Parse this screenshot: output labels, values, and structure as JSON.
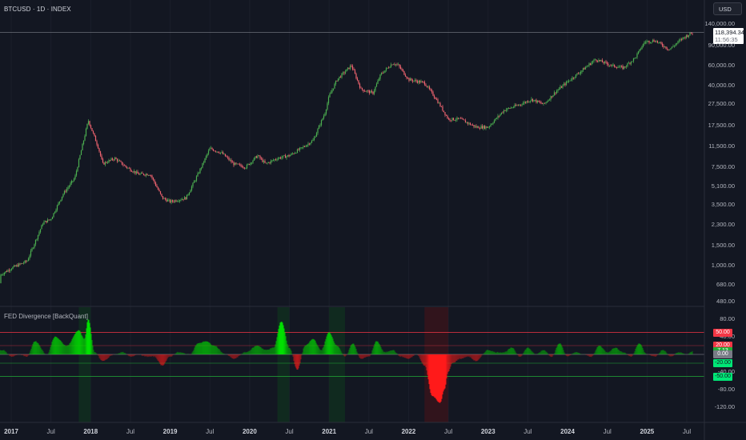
{
  "header": {
    "symbol_line": "BTCUSD · 1D · INDEX"
  },
  "currency_button": "USD",
  "last_price": {
    "value": "118,394.34",
    "countdown": "11:56:35"
  },
  "price_axis": [
    {
      "label": "140,000.00",
      "v": 140000
    },
    {
      "label": "90,000.00",
      "v": 90000
    },
    {
      "label": "60,000.00",
      "v": 60000
    },
    {
      "label": "40,000.00",
      "v": 40000
    },
    {
      "label": "27,500.00",
      "v": 27500
    },
    {
      "label": "17,500.00",
      "v": 17500
    },
    {
      "label": "11,500.00",
      "v": 11500
    },
    {
      "label": "7,500.00",
      "v": 7500
    },
    {
      "label": "5,100.00",
      "v": 5100
    },
    {
      "label": "3,500.00",
      "v": 3500
    },
    {
      "label": "2,300.00",
      "v": 2300
    },
    {
      "label": "1,500.00",
      "v": 1500
    },
    {
      "label": "1,000.00",
      "v": 1000
    },
    {
      "label": "680.00",
      "v": 680
    },
    {
      "label": "480.00",
      "v": 480
    }
  ],
  "indicator": {
    "title": "FED Divergence [BackQuant]",
    "axis": [
      {
        "label": "80.00",
        "v": 80
      },
      {
        "label": "40.00",
        "v": 40
      },
      {
        "label": "-40.00",
        "v": -40
      },
      {
        "label": "-80.00",
        "v": -80
      },
      {
        "label": "-120.00",
        "v": -120
      }
    ],
    "levels": {
      "upper_red": 50,
      "upper_red_inner": 20,
      "zero": 0,
      "lower_green_inner": -20,
      "lower_green": -50
    },
    "badges": [
      {
        "label": "50.00",
        "v": 50,
        "bg": "#f23645",
        "fg": "#ffffff"
      },
      {
        "label": "20.00",
        "v": 20,
        "bg": "#f23645",
        "fg": "#ffffff"
      },
      {
        "label": "7.13",
        "v": 7.13,
        "bg": "#22ab37",
        "fg": "#ffffff"
      },
      {
        "label": "0.00",
        "v": 0,
        "bg": "#787b86",
        "fg": "#ffffff"
      },
      {
        "label": "-20.00",
        "v": -20,
        "bg": "#00e676",
        "fg": "#131722"
      },
      {
        "label": "-50.00",
        "v": -50,
        "bg": "#00e676",
        "fg": "#131722"
      }
    ]
  },
  "time_axis": [
    {
      "label": "2017",
      "year": true,
      "t": 2017.0
    },
    {
      "label": "Jul",
      "year": false,
      "t": 2017.5
    },
    {
      "label": "2018",
      "year": true,
      "t": 2018.0
    },
    {
      "label": "Jul",
      "year": false,
      "t": 2018.5
    },
    {
      "label": "2019",
      "year": true,
      "t": 2019.0
    },
    {
      "label": "Jul",
      "year": false,
      "t": 2019.5
    },
    {
      "label": "2020",
      "year": true,
      "t": 2020.0
    },
    {
      "label": "Jul",
      "year": false,
      "t": 2020.5
    },
    {
      "label": "2021",
      "year": true,
      "t": 2021.0
    },
    {
      "label": "Jul",
      "year": false,
      "t": 2021.5
    },
    {
      "label": "2022",
      "year": true,
      "t": 2022.0
    },
    {
      "label": "Jul",
      "year": false,
      "t": 2022.5
    },
    {
      "label": "2023",
      "year": true,
      "t": 2023.0
    },
    {
      "label": "Jul",
      "year": false,
      "t": 2023.5
    },
    {
      "label": "2024",
      "year": true,
      "t": 2024.0
    },
    {
      "label": "Jul",
      "year": false,
      "t": 2024.5
    },
    {
      "label": "2025",
      "year": true,
      "t": 2025.0
    },
    {
      "label": "Jul",
      "year": false,
      "t": 2025.5
    }
  ],
  "colors": {
    "background": "#131722",
    "up": "#4caf50",
    "down": "#f06470",
    "osc_up": "#00e000",
    "osc_down": "#ff1a1a"
  },
  "chart_data": [
    {
      "type": "line",
      "scale": "log",
      "series": [
        {
          "x": [
            2016.7,
            2017.0,
            2017.2,
            2017.4,
            2017.5,
            2017.65,
            2017.8,
            2017.95,
            2017.97,
            2018.1,
            2018.15,
            2018.3,
            2018.45,
            2018.6,
            2018.75,
            2018.9,
            2019.0,
            2019.2,
            2019.35,
            2019.5,
            2019.65,
            2019.8,
            2019.95,
            2020.1,
            2020.2,
            2020.35,
            2020.5,
            2020.65,
            2020.8,
            2020.95,
            2021.0,
            2021.1,
            2021.28,
            2021.4,
            2021.55,
            2021.65,
            2021.8,
            2021.87,
            2022.0,
            2022.2,
            2022.35,
            2022.5,
            2022.65,
            2022.85,
            2023.0,
            2023.2,
            2023.4,
            2023.55,
            2023.7,
            2023.85,
            2024.0,
            2024.15,
            2024.35,
            2024.55,
            2024.7,
            2024.85,
            2024.97,
            2025.1,
            2025.28,
            2025.45,
            2025.58
          ],
          "y": [
            700,
            950,
            1100,
            2400,
            2600,
            4300,
            6000,
            17000,
            19500,
            11000,
            8000,
            9000,
            7500,
            6500,
            6500,
            4000,
            3700,
            4000,
            6500,
            11000,
            10000,
            8000,
            7500,
            9500,
            8000,
            9000,
            9500,
            11000,
            13000,
            23000,
            32000,
            45000,
            60000,
            37000,
            34000,
            50000,
            63000,
            60000,
            45000,
            42000,
            30000,
            20000,
            20000,
            17000,
            17000,
            24000,
            27000,
            30000,
            27000,
            35000,
            43000,
            52000,
            68000,
            60000,
            57000,
            70000,
            97000,
            100000,
            83000,
            105000,
            118394
          ]
        }
      ]
    },
    {
      "type": "area",
      "series": [
        {
          "x": [
            2016.9,
            2017.0,
            2017.1,
            2017.2,
            2017.3,
            2017.45,
            2017.55,
            2017.7,
            2017.85,
            2017.92,
            2017.97,
            2018.05,
            2018.15,
            2018.3,
            2018.4,
            2018.5,
            2018.6,
            2018.7,
            2018.8,
            2018.9,
            2019.0,
            2019.1,
            2019.25,
            2019.35,
            2019.45,
            2019.55,
            2019.7,
            2019.8,
            2019.95,
            2020.1,
            2020.2,
            2020.3,
            2020.4,
            2020.5,
            2020.6,
            2020.7,
            2020.8,
            2020.9,
            2021.0,
            2021.1,
            2021.2,
            2021.3,
            2021.4,
            2021.5,
            2021.6,
            2021.7,
            2021.8,
            2021.9,
            2022.0,
            2022.1,
            2022.2,
            2022.3,
            2022.4,
            2022.45,
            2022.5,
            2022.55,
            2022.65,
            2022.75,
            2022.85,
            2023.0,
            2023.1,
            2023.2,
            2023.3,
            2023.4,
            2023.5,
            2023.6,
            2023.7,
            2023.8,
            2023.9,
            2024.0,
            2024.1,
            2024.2,
            2024.3,
            2024.4,
            2024.5,
            2024.6,
            2024.7,
            2024.8,
            2024.9,
            2025.0,
            2025.1,
            2025.2,
            2025.3,
            2025.4,
            2025.5,
            2025.58
          ],
          "y": [
            10,
            -5,
            0,
            -5,
            30,
            0,
            40,
            20,
            55,
            35,
            80,
            5,
            -15,
            0,
            5,
            -5,
            0,
            -5,
            -5,
            -25,
            -5,
            5,
            0,
            25,
            30,
            20,
            0,
            -10,
            5,
            20,
            10,
            15,
            75,
            15,
            -35,
            20,
            35,
            10,
            50,
            20,
            -5,
            25,
            -10,
            -5,
            30,
            5,
            10,
            -5,
            -10,
            0,
            -25,
            -95,
            -110,
            -80,
            -40,
            -20,
            -10,
            -5,
            -15,
            10,
            5,
            5,
            15,
            -5,
            15,
            0,
            10,
            -5,
            25,
            -5,
            5,
            0,
            -5,
            20,
            5,
            15,
            5,
            -5,
            25,
            0,
            -5,
            10,
            -5,
            5,
            0,
            7.13
          ]
        }
      ]
    }
  ]
}
